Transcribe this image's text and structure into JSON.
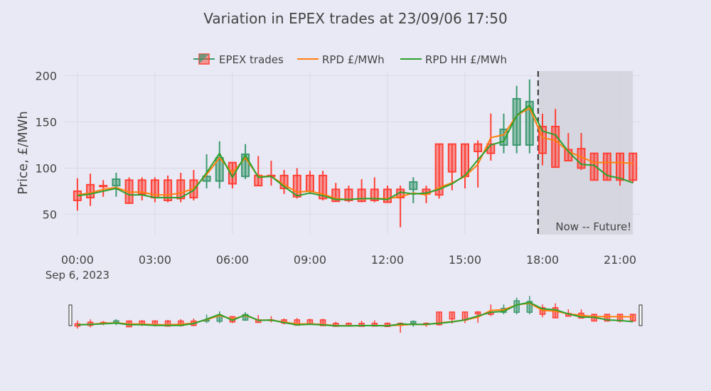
{
  "chart_data": {
    "type": "candlestick",
    "title": "Variation in EPEX trades at 23/09/06 17:50",
    "ylabel": "Price, £/MWh",
    "xlabel": "",
    "ylim": [
      28,
      205
    ],
    "xlim_hours": [
      -0.52,
      21.77
    ],
    "yticks": [
      50,
      100,
      150,
      200
    ],
    "xticks": [
      {
        "h": 0,
        "label": "00:00",
        "sub": "Sep 6, 2023"
      },
      {
        "h": 3,
        "label": "03:00"
      },
      {
        "h": 6,
        "label": "06:00"
      },
      {
        "h": 9,
        "label": "09:00"
      },
      {
        "h": 12,
        "label": "12:00"
      },
      {
        "h": 15,
        "label": "15:00"
      },
      {
        "h": 18,
        "label": "18:00"
      },
      {
        "h": 21,
        "label": "21:00"
      }
    ],
    "legend": {
      "placement": "top-center",
      "entries": [
        "EPEX trades",
        "RPD £/MWh",
        "RPD HH £/MWh"
      ]
    },
    "colors": {
      "increasing": "#3d9970",
      "decreasing": "#ff4136",
      "rpd": "#ff7f0e",
      "rpd_hh": "#2ca02c",
      "shade": "#d2d2dc"
    },
    "times": [
      "00:00",
      "00:30",
      "01:00",
      "01:30",
      "02:00",
      "02:30",
      "03:00",
      "03:30",
      "04:00",
      "04:30",
      "05:00",
      "05:30",
      "06:00",
      "06:30",
      "07:00",
      "07:30",
      "08:00",
      "08:30",
      "09:00",
      "09:30",
      "10:00",
      "10:30",
      "11:00",
      "11:30",
      "12:00",
      "12:30",
      "13:00",
      "13:30",
      "14:00",
      "14:30",
      "15:00",
      "15:30",
      "16:00",
      "16:30",
      "17:00",
      "17:30",
      "18:00",
      "18:30",
      "19:00",
      "19:30",
      "20:00",
      "20:30",
      "21:00",
      "21:30"
    ],
    "open": [
      75,
      82,
      81,
      81,
      87,
      87,
      87,
      87,
      87,
      87,
      86,
      86,
      106,
      91,
      92,
      92,
      92,
      92,
      92,
      92,
      77,
      77,
      77,
      77,
      77,
      77,
      77,
      77,
      126,
      126,
      126,
      126,
      126,
      125,
      125,
      125,
      145,
      145,
      120,
      121,
      116,
      116,
      116,
      116
    ],
    "high": [
      89,
      94,
      87,
      95,
      90,
      90,
      90,
      92,
      95,
      98,
      115,
      129,
      106,
      126,
      113,
      108,
      98,
      100,
      97,
      97,
      84,
      81,
      88,
      90,
      81,
      81,
      90,
      81,
      126,
      126,
      126,
      130,
      159,
      159,
      189,
      196,
      159,
      164,
      138,
      138,
      116,
      116,
      116,
      116
    ],
    "low": [
      54,
      59,
      69,
      69,
      62,
      65,
      63,
      63,
      63,
      65,
      78,
      78,
      78,
      88,
      81,
      81,
      72,
      67,
      72,
      65,
      64,
      63,
      63,
      63,
      63,
      36,
      62,
      62,
      67,
      76,
      78,
      79,
      108,
      116,
      116,
      116,
      103,
      101,
      108,
      98,
      87,
      87,
      81,
      84
    ],
    "close": [
      65,
      68,
      80,
      88,
      62,
      72,
      68,
      65,
      67,
      68,
      91,
      111,
      83,
      115,
      81,
      91,
      78,
      69,
      75,
      67,
      64,
      65,
      64,
      65,
      63,
      68,
      85,
      72,
      71,
      96,
      91,
      118,
      116,
      142,
      175,
      172,
      116,
      101,
      108,
      100,
      87,
      87,
      87,
      87
    ],
    "series": [
      {
        "name": "RPD £/MWh",
        "values": [
          71,
          73,
          77,
          79,
          74,
          74,
          71,
          71,
          73,
          78,
          93,
          111,
          95,
          111,
          91,
          91,
          82,
          74,
          75,
          72,
          67,
          66,
          67,
          67,
          67,
          69,
          73,
          71,
          79,
          84,
          91,
          104,
          133,
          136,
          157,
          165,
          133,
          130,
          118,
          112,
          106,
          106,
          106,
          105
        ]
      },
      {
        "name": "RPD HH £/MWh",
        "values": [
          70,
          72,
          75,
          78,
          71,
          71,
          68,
          68,
          68,
          76,
          95,
          116,
          90,
          114,
          90,
          91,
          80,
          70,
          73,
          70,
          66,
          66,
          67,
          67,
          66,
          74,
          72,
          73,
          77,
          83,
          92,
          109,
          125,
          129,
          157,
          168,
          140,
          136,
          118,
          104,
          103,
          92,
          89,
          84
        ]
      }
    ],
    "now_hours": 17.83,
    "future_end_hours": 21.5,
    "annotation": "Now -- Future!"
  }
}
